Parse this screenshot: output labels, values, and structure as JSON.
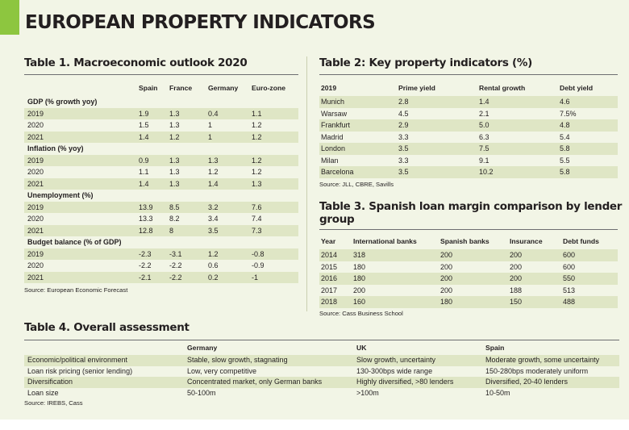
{
  "page_title": "EUROPEAN PROPERTY INDICATORS",
  "colors": {
    "accent": "#8dc63f",
    "panel": "#f2f5e6",
    "band": "#dfe6c5"
  },
  "table1": {
    "title": "Table 1. Macroeconomic outlook 2020",
    "columns": [
      "Spain",
      "France",
      "Germany",
      "Euro-zone"
    ],
    "sections": [
      {
        "label": "GDP (% growth yoy)",
        "rows": [
          {
            "label": "2019",
            "values": [
              "1.9",
              "1.3",
              "0.4",
              "1.1"
            ]
          },
          {
            "label": "2020",
            "values": [
              "1.5",
              "1.3",
              "1",
              "1.2"
            ]
          },
          {
            "label": "2021",
            "values": [
              "1.4",
              "1.2",
              "1",
              "1.2"
            ]
          }
        ]
      },
      {
        "label": "Inflation (% yoy)",
        "rows": [
          {
            "label": "2019",
            "values": [
              "0.9",
              "1.3",
              "1.3",
              "1.2"
            ]
          },
          {
            "label": "2020",
            "values": [
              "1.1",
              "1.3",
              "1.2",
              "1.2"
            ]
          },
          {
            "label": "2021",
            "values": [
              "1.4",
              "1.3",
              "1.4",
              "1.3"
            ]
          }
        ]
      },
      {
        "label": "Unemployment (%)",
        "rows": [
          {
            "label": "2019",
            "values": [
              "13.9",
              "8.5",
              "3.2",
              "7.6"
            ]
          },
          {
            "label": "2020",
            "values": [
              "13.3",
              "8.2",
              "3.4",
              "7.4"
            ]
          },
          {
            "label": "2021",
            "values": [
              "12.8",
              "8",
              "3.5",
              "7.3"
            ]
          }
        ]
      },
      {
        "label": "Budget balance (% of GDP)",
        "rows": [
          {
            "label": "2019",
            "values": [
              "-2.3",
              "-3.1",
              "1.2",
              "-0.8"
            ]
          },
          {
            "label": "2020",
            "values": [
              "-2.2",
              "-2.2",
              "0.6",
              "-0.9"
            ]
          },
          {
            "label": "2021",
            "values": [
              "-2.1",
              "-2.2",
              "0.2",
              "-1"
            ]
          }
        ]
      }
    ],
    "source": "Source: European Economic Forecast"
  },
  "table2": {
    "title": "Table 2: Key property indicators (%)",
    "columns": [
      "2019",
      "Prime yield",
      "Rental growth",
      "Debt yield"
    ],
    "rows": [
      [
        "Munich",
        "2.8",
        "1.4",
        "4.6"
      ],
      [
        "Warsaw",
        "4.5",
        "2.1",
        "7.5%"
      ],
      [
        "Frankfurt",
        "2.9",
        "5.0",
        "4.8"
      ],
      [
        "Madrid",
        "3.3",
        "6.3",
        "5.4"
      ],
      [
        "London",
        "3.5",
        "7.5",
        "5.8"
      ],
      [
        "Milan",
        "3.3",
        "9.1",
        "5.5"
      ],
      [
        "Barcelona",
        "3.5",
        "10.2",
        "5.8"
      ]
    ],
    "source": "Source: JLL, CBRE, Savills"
  },
  "table3": {
    "title_line1": "Table 3. Spanish loan margin comparison by lender",
    "title_line2": "group",
    "columns": [
      "Year",
      "International banks",
      "Spanish banks",
      "Insurance",
      "Debt funds"
    ],
    "rows": [
      [
        "2014",
        "318",
        "200",
        "200",
        "600"
      ],
      [
        "2015",
        "180",
        "200",
        "200",
        "600"
      ],
      [
        "2016",
        "180",
        "200",
        "200",
        "550"
      ],
      [
        "2017",
        "200",
        "200",
        "188",
        "513"
      ],
      [
        "2018",
        "160",
        "180",
        "150",
        "488"
      ]
    ],
    "source": "Source: Cass Business School"
  },
  "table4": {
    "title": "Table 4. Overall assessment",
    "columns": [
      "",
      "Germany",
      "UK",
      "Spain"
    ],
    "rows": [
      [
        "Economic/political environment",
        "Stable, slow growth, stagnating",
        "Slow growth, uncertainty",
        "Moderate growth, some uncertainty"
      ],
      [
        "Loan risk pricing (senior lending)",
        "Low, very competitive",
        "130-300bps wide range",
        "150-280bps moderately uniform"
      ],
      [
        "Diversification",
        "Concentrated market, only German banks",
        "Highly diversified, >80 lenders",
        "Diversified, 20-40 lenders"
      ],
      [
        "Loan size",
        "50-100m",
        ">100m",
        "10-50m"
      ]
    ],
    "source": "Source: IREBS, Cass"
  }
}
